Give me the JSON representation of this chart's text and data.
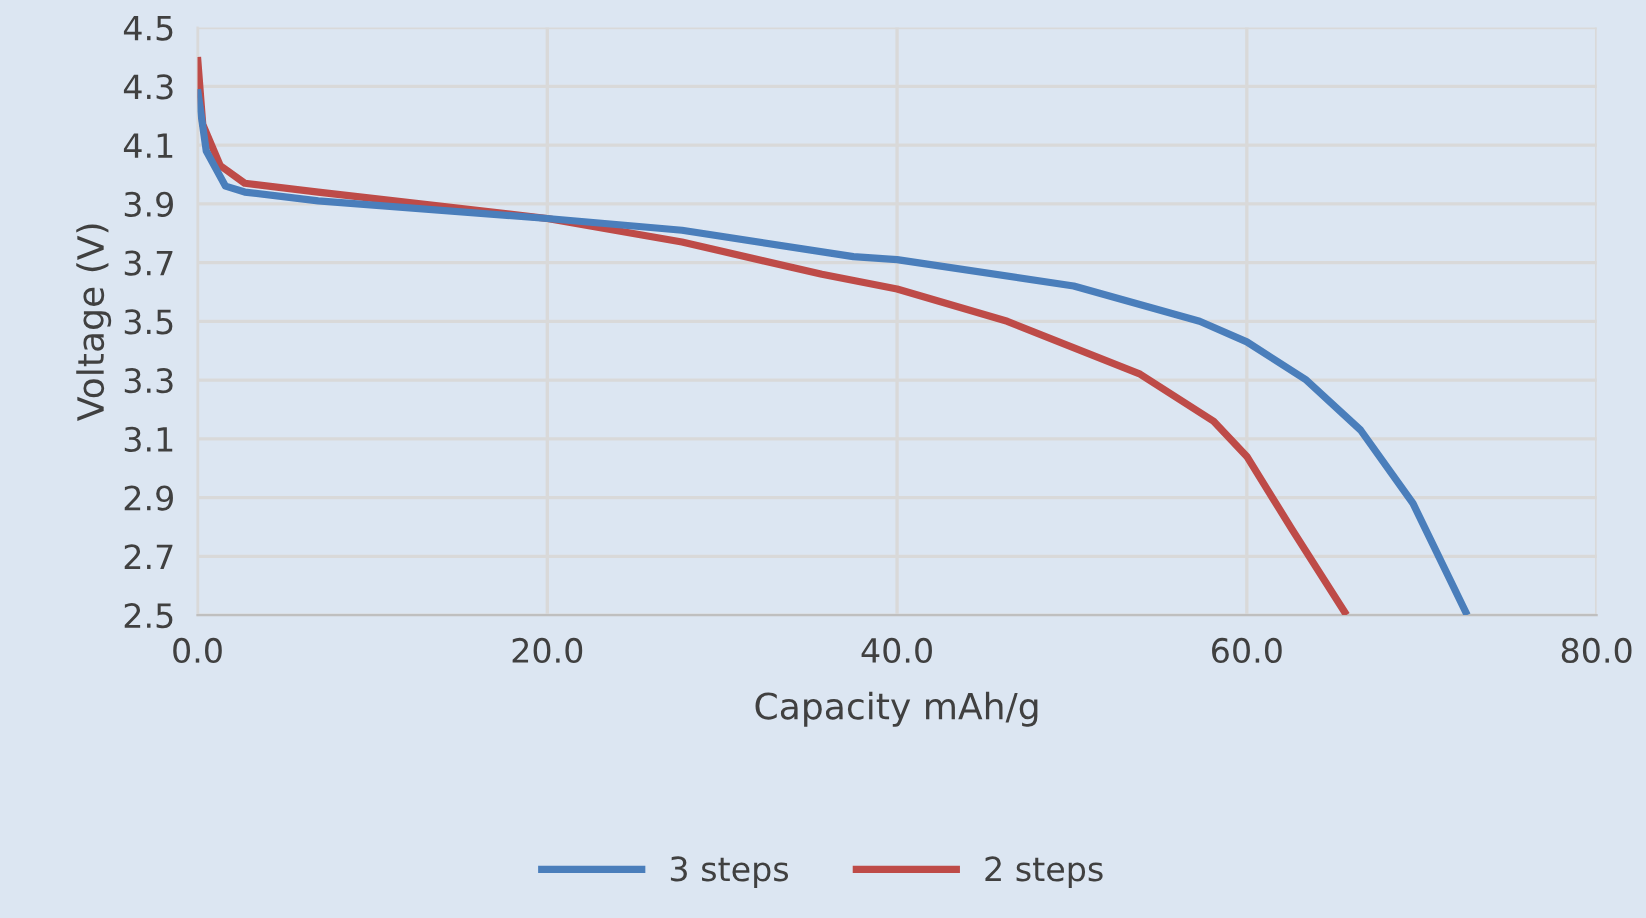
{
  "chart_data": {
    "type": "line",
    "xlabel": "Capacity mAh/g",
    "ylabel": "Voltage (V)",
    "xlim": [
      0,
      80
    ],
    "xticks": [
      {
        "value": 0,
        "label": "0.0"
      },
      {
        "value": 20,
        "label": "20.0"
      },
      {
        "value": 40,
        "label": "40.0"
      },
      {
        "value": 60,
        "label": "60.0"
      },
      {
        "value": 80,
        "label": "80.0"
      }
    ],
    "ylim": [
      2.5,
      4.5
    ],
    "yticks": [
      2.5,
      2.7,
      2.9,
      3.1,
      3.3,
      3.5,
      3.7,
      3.9,
      4.1,
      4.3,
      4.5
    ],
    "grid": true,
    "legend": "bottom",
    "marker": "none",
    "line_style": "solid",
    "series": [
      {
        "name": "3 steps",
        "color": "#4a7ebb",
        "x": [
          0,
          0.5,
          1.6,
          2.7,
          6.9,
          20,
          27.7,
          37.5,
          40,
          50.1,
          57.3,
          60,
          63.4,
          66.5,
          69.5,
          72.6
        ],
        "values": [
          4.29,
          4.08,
          3.96,
          3.94,
          3.91,
          3.85,
          3.81,
          3.72,
          3.71,
          3.62,
          3.5,
          3.43,
          3.3,
          3.13,
          2.88,
          2.5
        ]
      },
      {
        "name": "2 steps",
        "color": "#be4b48",
        "x": [
          0,
          0.3,
          1.3,
          2.7,
          6.9,
          20,
          27.7,
          35.7,
          40,
          46.3,
          53.9,
          58.1,
          60,
          62.6,
          65.7
        ],
        "values": [
          4.4,
          4.17,
          4.03,
          3.97,
          3.94,
          3.85,
          3.77,
          3.66,
          3.61,
          3.5,
          3.32,
          3.16,
          3.04,
          2.79,
          2.5
        ]
      }
    ]
  }
}
